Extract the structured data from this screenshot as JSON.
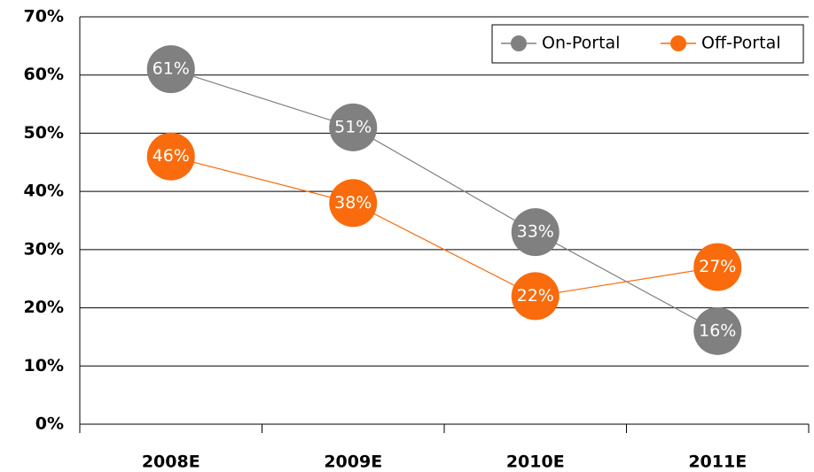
{
  "chart_data": {
    "type": "line",
    "categories": [
      "2008E",
      "2009E",
      "2010E",
      "2011E"
    ],
    "series": [
      {
        "name": "On-Portal",
        "color": "#808080",
        "values": [
          61,
          51,
          33,
          16
        ],
        "value_labels": [
          "61%",
          "51%",
          "33%",
          "16%"
        ]
      },
      {
        "name": "Off-Portal",
        "color": "#f96b0c",
        "values": [
          46,
          38,
          22,
          27
        ],
        "value_labels": [
          "46%",
          "38%",
          "22%",
          "27%"
        ]
      }
    ],
    "ylim": [
      0,
      70
    ],
    "yticks": [
      {
        "value": 0,
        "label": "0%"
      },
      {
        "value": 10,
        "label": "10%"
      },
      {
        "value": 20,
        "label": "20%"
      },
      {
        "value": 30,
        "label": "30%"
      },
      {
        "value": 40,
        "label": "40%"
      },
      {
        "value": 50,
        "label": "50%"
      },
      {
        "value": 60,
        "label": "60%"
      },
      {
        "value": 70,
        "label": "70%"
      }
    ],
    "grid": true,
    "legend": "top-right"
  }
}
